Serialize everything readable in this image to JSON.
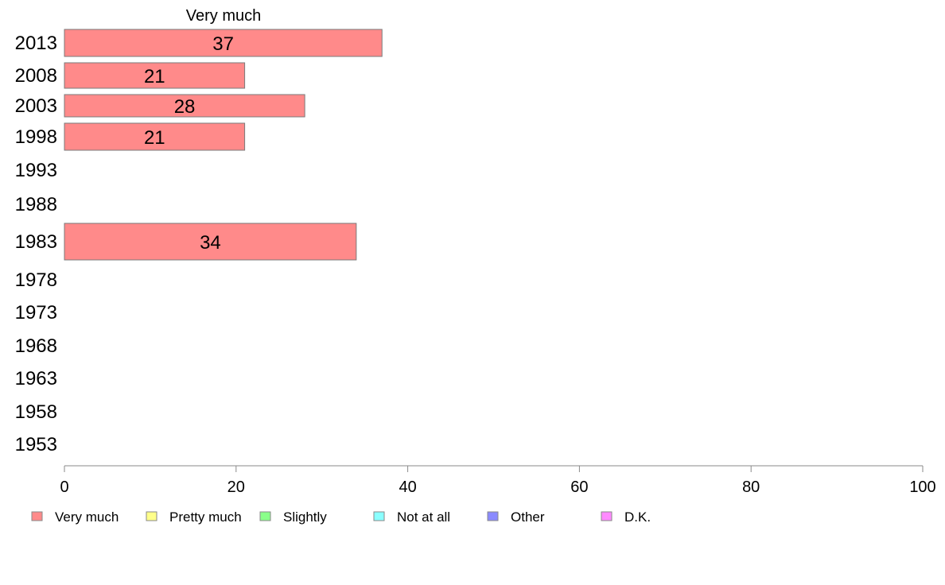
{
  "chart_data": {
    "type": "bar",
    "orientation": "horizontal",
    "title": "Very much",
    "categories": [
      "2013",
      "2008",
      "2003",
      "1998",
      "1993",
      "1988",
      "1983",
      "1978",
      "1973",
      "1968",
      "1963",
      "1958",
      "1953"
    ],
    "series": [
      {
        "name": "Very much",
        "color": "#ff8a8a",
        "values": [
          37,
          21,
          28,
          21,
          null,
          null,
          34,
          null,
          null,
          null,
          null,
          null,
          null
        ]
      }
    ],
    "bar_value_labels": [
      "37",
      "21",
      "28",
      "21",
      "",
      "",
      "34",
      "",
      "",
      "",
      "",
      "",
      ""
    ],
    "xlim": [
      0,
      100
    ],
    "xticks": [
      0,
      20,
      40,
      60,
      80,
      100
    ],
    "legend": {
      "placement": "bottom",
      "items": [
        {
          "label": "Very much",
          "color": "#ff8a8a"
        },
        {
          "label": "Pretty much",
          "color": "#ffff8a"
        },
        {
          "label": "Slightly",
          "color": "#8aff8a"
        },
        {
          "label": "Not at all",
          "color": "#8affff"
        },
        {
          "label": "Other",
          "color": "#8a8aff"
        },
        {
          "label": "D.K.",
          "color": "#ff8aff"
        }
      ]
    },
    "grid": false
  }
}
